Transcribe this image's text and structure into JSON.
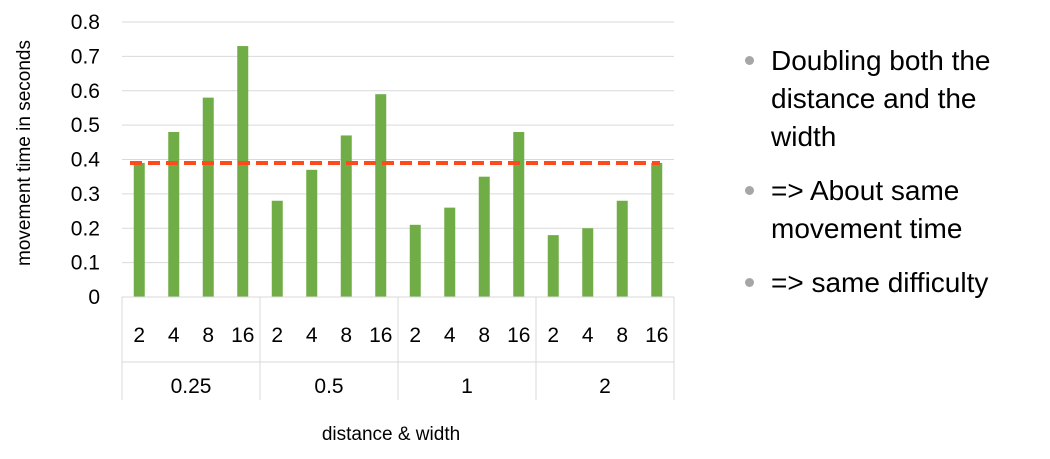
{
  "chart_data": {
    "type": "bar",
    "xlabel": "distance & width",
    "ylabel": "movement time in seconds",
    "ylim": [
      0,
      0.8
    ],
    "yticks": [
      "0",
      "0.1",
      "0.2",
      "0.3",
      "0.4",
      "0.5",
      "0.6",
      "0.7",
      "0.8"
    ],
    "groups": [
      {
        "label": "0.25",
        "categories": [
          "2",
          "4",
          "8",
          "16"
        ],
        "values": [
          0.39,
          0.48,
          0.58,
          0.73
        ]
      },
      {
        "label": "0.5",
        "categories": [
          "2",
          "4",
          "8",
          "16"
        ],
        "values": [
          0.28,
          0.37,
          0.47,
          0.59
        ]
      },
      {
        "label": "1",
        "categories": [
          "2",
          "4",
          "8",
          "16"
        ],
        "values": [
          0.21,
          0.26,
          0.35,
          0.48
        ]
      },
      {
        "label": "2",
        "categories": [
          "2",
          "4",
          "8",
          "16"
        ],
        "values": [
          0.18,
          0.2,
          0.28,
          0.39
        ]
      }
    ],
    "reference_line": {
      "value": 0.39,
      "style": "dashed"
    },
    "grid": true,
    "legend": "none",
    "colors": {
      "bar": "#70ad47",
      "reference_line": "#ff4b1c",
      "grid": "#d9d9d9"
    }
  },
  "bullets": [
    "Doubling both the distance and the width",
    "=> About same movement time",
    "=> same difficulty"
  ]
}
